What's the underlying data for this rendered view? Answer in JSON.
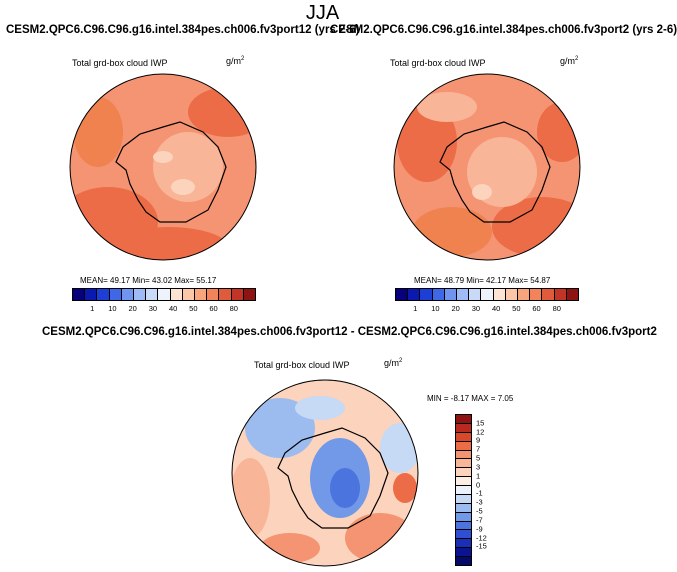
{
  "title": "JJA",
  "panels": [
    {
      "case": "CESM2.QPC6.C96.C96.g16.intel.384pes.ch006.fv3port12 (yrs 2-6)",
      "variable": "Total grd-box cloud IWP",
      "units": "g/m",
      "units_exp": "2",
      "stats": "MEAN= 49.17  Min= 43.02  Max= 55.17"
    },
    {
      "case": "CESM2.QPC6.C96.C96.g16.intel.384pes.ch006.fv3port2 (yrs 2-6)",
      "variable": "Total grd-box cloud IWP",
      "units": "g/m",
      "units_exp": "2",
      "stats": "MEAN= 48.79  Min= 42.17  Max= 54.87"
    }
  ],
  "colorbar_abs": {
    "colors": [
      "#08007a",
      "#0a1ab0",
      "#1e3fd6",
      "#3f68e8",
      "#6f95f0",
      "#9fbbf5",
      "#c9d9f8",
      "#eef3fb",
      "#fde4d2",
      "#fbc7a8",
      "#f8a57e",
      "#f2835a",
      "#e05a3c",
      "#c23426",
      "#8e1414"
    ],
    "ticks": [
      "1",
      "10",
      "20",
      "30",
      "40",
      "50",
      "60",
      "80"
    ]
  },
  "diff": {
    "title": "CESM2.QPC6.C96.C96.g16.intel.384pes.ch006.fv3port12 - CESM2.QPC6.C96.C96.g16.intel.384pes.ch006.fv3port2",
    "variable": "Total grd-box cloud IWP",
    "units": "g/m",
    "units_exp": "2",
    "stats": "MIN =  -8.17  MAX =   7.05"
  },
  "colorbar_diff": {
    "colors": [
      "#8e1414",
      "#b82a1f",
      "#d9472d",
      "#ec6c48",
      "#f59472",
      "#f9b597",
      "#fcd3bd",
      "#fdeee3",
      "#ebf2fb",
      "#c6d9f5",
      "#9cbcef",
      "#7199e8",
      "#4b74df",
      "#2d4fd0",
      "#1a2fb8",
      "#0a1490",
      "#050a6a"
    ],
    "ticks": [
      "15",
      "12",
      "9",
      "7",
      "5",
      "3",
      "1",
      "0",
      "-1",
      "-3",
      "-5",
      "-7",
      "-9",
      "-12",
      "-15"
    ]
  },
  "chart_data": [
    {
      "type": "heatmap",
      "projection": "south polar stereographic",
      "title": "CESM2.QPC6.C96.C96.g16.intel.384pes.ch006.fv3port12 (yrs 2-6)",
      "variable": "Total grd-box cloud IWP",
      "units": "g/m2",
      "levels": [
        1,
        5,
        10,
        15,
        20,
        25,
        30,
        35,
        40,
        45,
        50,
        55,
        60,
        70,
        80
      ],
      "mean": 49.17,
      "min": 43.02,
      "max": 55.17
    },
    {
      "type": "heatmap",
      "projection": "south polar stereographic",
      "title": "CESM2.QPC6.C96.C96.g16.intel.384pes.ch006.fv3port2 (yrs 2-6)",
      "variable": "Total grd-box cloud IWP",
      "units": "g/m2",
      "levels": [
        1,
        5,
        10,
        15,
        20,
        25,
        30,
        35,
        40,
        45,
        50,
        55,
        60,
        70,
        80
      ],
      "mean": 48.79,
      "min": 42.17,
      "max": 54.87
    },
    {
      "type": "heatmap",
      "projection": "south polar stereographic",
      "title": "CESM2.QPC6.C96.C96.g16.intel.384pes.ch006.fv3port12 - CESM2.QPC6.C96.C96.g16.intel.384pes.ch006.fv3port2",
      "variable": "Total grd-box cloud IWP",
      "units": "g/m2",
      "levels": [
        -15,
        -12,
        -9,
        -7,
        -5,
        -3,
        -1,
        0,
        1,
        3,
        5,
        7,
        9,
        12,
        15
      ],
      "min": -8.17,
      "max": 7.05
    }
  ]
}
